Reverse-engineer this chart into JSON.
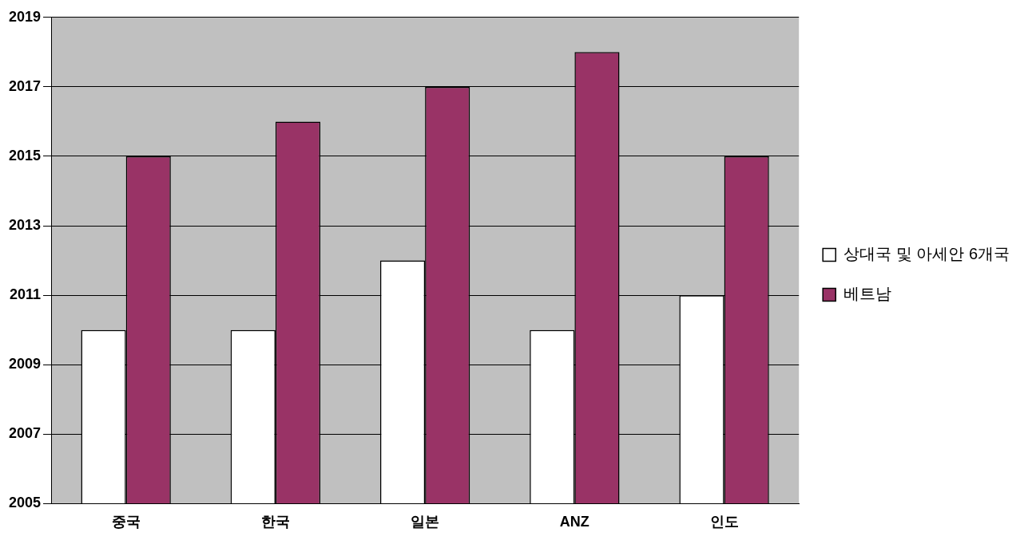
{
  "chart_data": {
    "type": "bar",
    "categories": [
      "중국",
      "한국",
      "일본",
      "ANZ",
      "인도"
    ],
    "series": [
      {
        "name": "상대국 및 아세안 6개국",
        "color": "#ffffff",
        "values": [
          2010,
          2010,
          2012,
          2010,
          2011
        ]
      },
      {
        "name": "베트남",
        "color": "#993366",
        "values": [
          2015,
          2016,
          2017,
          2018,
          2015
        ]
      }
    ],
    "ylim": [
      2005,
      2019
    ],
    "yticks": [
      2005,
      2007,
      2009,
      2011,
      2013,
      2015,
      2017,
      2019
    ],
    "grid": "y",
    "legend": "right"
  }
}
